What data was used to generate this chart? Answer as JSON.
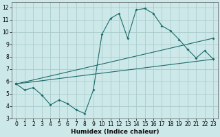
{
  "xlabel": "Humidex (Indice chaleur)",
  "bg_color": "#cde8e8",
  "grid_color": "#aacccc",
  "line_color": "#1a6b6b",
  "xlim": [
    -0.5,
    23.5
  ],
  "ylim": [
    3,
    12.4
  ],
  "xticks": [
    0,
    1,
    2,
    3,
    4,
    5,
    6,
    7,
    8,
    9,
    10,
    11,
    12,
    13,
    14,
    15,
    16,
    17,
    18,
    19,
    20,
    21,
    22,
    23
  ],
  "yticks": [
    3,
    4,
    5,
    6,
    7,
    8,
    9,
    10,
    11,
    12
  ],
  "series1_x": [
    0,
    1,
    2,
    3,
    4,
    5,
    6,
    7,
    8,
    9,
    10,
    11,
    12,
    13,
    14,
    15,
    16,
    17,
    18,
    19,
    20,
    21,
    22,
    23
  ],
  "series1_y": [
    5.8,
    5.3,
    5.5,
    4.9,
    4.1,
    4.5,
    4.2,
    3.7,
    3.4,
    5.3,
    9.8,
    11.1,
    11.5,
    9.5,
    11.8,
    11.9,
    11.5,
    10.5,
    10.1,
    9.4,
    8.6,
    7.9,
    8.5,
    7.8
  ],
  "series2_x": [
    0,
    23
  ],
  "series2_y": [
    5.8,
    9.5
  ],
  "series3_x": [
    0,
    23
  ],
  "series3_y": [
    5.8,
    7.8
  ],
  "tick_fontsize": 5.5,
  "xlabel_fontsize": 6.5
}
